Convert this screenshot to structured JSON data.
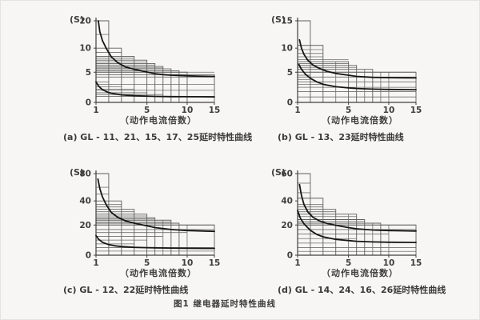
{
  "figure_caption": "图1 继电器延时特性曲线",
  "chart_data": [
    {
      "id": "a",
      "type": "line",
      "ylabel": "(S)",
      "xlabel": "（动作电流倍数）",
      "caption": "(a) GL - 11、21、15、17、25延时特性曲线",
      "yticks": [
        0,
        5,
        10,
        20
      ],
      "xticks": [
        1,
        5,
        10,
        15
      ],
      "xlim": [
        1,
        15
      ],
      "grid": "stepped-setting-bands",
      "steps": [
        {
          "xr": 2,
          "h": 20
        },
        {
          "xr": 3,
          "h": 10
        },
        {
          "xr": 4,
          "h": 8.3
        },
        {
          "xr": 5,
          "h": 7.5
        },
        {
          "xr": 6,
          "h": 6.8
        },
        {
          "xr": 7,
          "h": 6.2
        },
        {
          "xr": 8,
          "h": 5.7
        },
        {
          "xr": 9,
          "h": 5.3
        },
        {
          "xr": 10,
          "h": 5
        },
        {
          "xr": 15,
          "h": 4.6
        }
      ],
      "lines": [
        {
          "h": 15,
          "xr": 2
        },
        {
          "h": 9.1,
          "xr": 3
        },
        {
          "h": 7.9,
          "xr": 4
        },
        {
          "h": 7.1,
          "xr": 5
        },
        {
          "h": 6.5,
          "xr": 6
        },
        {
          "h": 5.9,
          "xr": 7
        },
        {
          "h": 5,
          "xr": 15
        },
        {
          "h": 4.2,
          "xr": 15
        },
        {
          "h": 3,
          "xr": 15
        },
        {
          "h": 2,
          "xr": 15
        },
        {
          "h": 1,
          "xr": 15
        },
        {
          "h": 3.4,
          "xr": 2
        },
        {
          "h": 2.6,
          "xr": 3
        },
        {
          "h": 2.2,
          "xr": 4
        },
        {
          "h": 1.6,
          "xr": 5
        },
        {
          "h": 1.3,
          "xr": 7
        }
      ],
      "vlines": [],
      "curves": [
        {
          "name": "upper-limit-curve",
          "points": [
            [
              1.18,
              20
            ],
            [
              1.3,
              16
            ],
            [
              1.5,
              12.8
            ],
            [
              1.8,
              10
            ],
            [
              2.2,
              8.2
            ],
            [
              2.7,
              7
            ],
            [
              3.3,
              6.1
            ],
            [
              4,
              5.6
            ],
            [
              5,
              5.05
            ],
            [
              6,
              4.75
            ],
            [
              7,
              4.6
            ],
            [
              8,
              4.5
            ],
            [
              10,
              4.4
            ],
            [
              12,
              4.35
            ],
            [
              15,
              4.3
            ]
          ]
        },
        {
          "name": "lower-limit-curve",
          "points": [
            [
              1,
              3.4
            ],
            [
              1.2,
              2.7
            ],
            [
              1.5,
              2.1
            ],
            [
              2,
              1.62
            ],
            [
              2.5,
              1.4
            ],
            [
              3,
              1.25
            ],
            [
              4,
              1.1
            ],
            [
              5,
              1.03
            ],
            [
              6,
              1.0
            ],
            [
              8,
              0.96
            ],
            [
              10,
              0.94
            ],
            [
              15,
              0.92
            ]
          ]
        }
      ]
    },
    {
      "id": "b",
      "type": "line",
      "ylabel": "(S)",
      "xlabel": "（动作电流倍数）",
      "caption": "(b) GL - 13、23延时特性曲线",
      "yticks": [
        0,
        5,
        10,
        15
      ],
      "xticks": [
        1,
        5,
        10,
        15
      ],
      "xlim": [
        1,
        15
      ],
      "grid": "stepped-setting-bands",
      "steps": [
        {
          "xr": 2,
          "h": 15
        },
        {
          "xr": 3,
          "h": 10.5
        },
        {
          "xr": 5,
          "h": 7.2
        },
        {
          "xr": 6,
          "h": 6.4
        },
        {
          "xr": 8,
          "h": 5.6
        },
        {
          "xr": 15,
          "h": 5
        }
      ],
      "lines": [
        {
          "h": 9.7,
          "xr": 3
        },
        {
          "h": 8.9,
          "xr": 3
        },
        {
          "h": 8.2,
          "xr": 3
        },
        {
          "h": 7.6,
          "xr": 5
        },
        {
          "h": 6.8,
          "xr": 5
        },
        {
          "h": 6,
          "xr": 6
        },
        {
          "h": 5,
          "xr": 15
        },
        {
          "h": 4.2,
          "xr": 15
        },
        {
          "h": 3.4,
          "xr": 15
        },
        {
          "h": 2.5,
          "xr": 15
        },
        {
          "h": 1.8,
          "xr": 15
        },
        {
          "h": 0.9,
          "xr": 15
        },
        {
          "h": 4.5,
          "xr": 2
        },
        {
          "h": 3.8,
          "xr": 2
        },
        {
          "h": 3,
          "xr": 3
        }
      ],
      "vlines": [
        {
          "x": 4,
          "h": 7.2
        },
        {
          "x": 7,
          "h": 5.6
        },
        {
          "x": 9,
          "h": 5
        },
        {
          "x": 10,
          "h": 5
        }
      ],
      "curves": [
        {
          "name": "upper-limit-curve",
          "points": [
            [
              1.15,
              11.5
            ],
            [
              1.3,
              10
            ],
            [
              1.5,
              8.7
            ],
            [
              1.8,
              7.5
            ],
            [
              2.2,
              6.5
            ],
            [
              2.7,
              5.8
            ],
            [
              3.3,
              5.2
            ],
            [
              4,
              4.8
            ],
            [
              5,
              4.5
            ],
            [
              6,
              4.3
            ],
            [
              8,
              4.15
            ],
            [
              10,
              4.1
            ],
            [
              15,
              4.05
            ]
          ]
        },
        {
          "name": "lower-limit-curve",
          "points": [
            [
              1.1,
              6.6
            ],
            [
              1.3,
              5.6
            ],
            [
              1.6,
              4.7
            ],
            [
              2,
              4
            ],
            [
              2.5,
              3.4
            ],
            [
              3,
              3
            ],
            [
              4,
              2.6
            ],
            [
              5,
              2.4
            ],
            [
              6,
              2.3
            ],
            [
              8,
              2.2
            ],
            [
              10,
              2.15
            ],
            [
              15,
              2.1
            ]
          ]
        }
      ]
    },
    {
      "id": "c",
      "type": "line",
      "ylabel": "(S)",
      "xlabel": "（动作电流倍数）",
      "caption": "(c) GL - 12、22延时特性曲线",
      "yticks": [
        0,
        20,
        40,
        80
      ],
      "xticks": [
        1,
        5,
        10,
        15
      ],
      "xlim": [
        1,
        15
      ],
      "grid": "stepped-setting-bands",
      "steps": [
        {
          "xr": 2,
          "h": 80
        },
        {
          "xr": 3,
          "h": 40
        },
        {
          "xr": 4,
          "h": 33
        },
        {
          "xr": 5,
          "h": 29
        },
        {
          "xr": 6,
          "h": 26
        },
        {
          "xr": 8,
          "h": 24
        },
        {
          "xr": 9,
          "h": 21.5
        },
        {
          "xr": 15,
          "h": 20
        }
      ],
      "lines": [
        {
          "h": 60,
          "xr": 2
        },
        {
          "h": 50,
          "xr": 2
        },
        {
          "h": 37,
          "xr": 3
        },
        {
          "h": 35,
          "xr": 3
        },
        {
          "h": 31,
          "xr": 4
        },
        {
          "h": 27.5,
          "xr": 5
        },
        {
          "h": 25,
          "xr": 6
        },
        {
          "h": 22.5,
          "xr": 8
        },
        {
          "h": 20,
          "xr": 15
        },
        {
          "h": 17,
          "xr": 15
        },
        {
          "h": 15,
          "xr": 10
        },
        {
          "h": 12.5,
          "xr": 7
        },
        {
          "h": 10,
          "xr": 5
        },
        {
          "h": 7.5,
          "xr": 4
        },
        {
          "h": 5,
          "xr": 15
        },
        {
          "h": 2.7,
          "xr": 15
        }
      ],
      "vlines": [
        {
          "x": 7,
          "h": 24
        },
        {
          "x": 10,
          "h": 20
        }
      ],
      "curves": [
        {
          "name": "upper-limit-curve",
          "points": [
            [
              1.15,
              72
            ],
            [
              1.3,
              58
            ],
            [
              1.5,
              46
            ],
            [
              1.8,
              37
            ],
            [
              2.2,
              30.5
            ],
            [
              2.7,
              26.5
            ],
            [
              3.3,
              23.5
            ],
            [
              4,
              21.5
            ],
            [
              5,
              19.5
            ],
            [
              6,
              18.3
            ],
            [
              8,
              17
            ],
            [
              10,
              16.3
            ],
            [
              15,
              15.8
            ]
          ]
        },
        {
          "name": "lower-limit-curve",
          "points": [
            [
              1,
              13
            ],
            [
              1.2,
              10.6
            ],
            [
              1.5,
              8.6
            ],
            [
              2,
              7
            ],
            [
              2.5,
              6.2
            ],
            [
              3,
              5.7
            ],
            [
              4,
              5.2
            ],
            [
              5,
              5
            ],
            [
              6,
              4.85
            ],
            [
              8,
              4.7
            ],
            [
              10,
              4.6
            ],
            [
              15,
              4.5
            ]
          ]
        }
      ]
    },
    {
      "id": "d",
      "type": "line",
      "ylabel": "(S)",
      "xlabel": "（动作电流倍数）",
      "caption": "(d) GL - 14、24、16、26延时特性曲线",
      "yticks": [
        0,
        20,
        40,
        60
      ],
      "xticks": [
        1,
        5,
        10,
        15
      ],
      "xlim": [
        1,
        15
      ],
      "grid": "stepped-setting-bands",
      "steps": [
        {
          "xr": 2,
          "h": 60
        },
        {
          "xr": 3,
          "h": 42
        },
        {
          "xr": 4,
          "h": 33
        },
        {
          "xr": 6,
          "h": 29
        },
        {
          "xr": 7,
          "h": 24.5
        },
        {
          "xr": 9,
          "h": 21.5
        },
        {
          "xr": 15,
          "h": 20
        }
      ],
      "lines": [
        {
          "h": 53,
          "xr": 2
        },
        {
          "h": 46,
          "xr": 2
        },
        {
          "h": 37,
          "xr": 3
        },
        {
          "h": 35,
          "xr": 3
        },
        {
          "h": 31,
          "xr": 4
        },
        {
          "h": 27,
          "xr": 6
        },
        {
          "h": 23,
          "xr": 7
        },
        {
          "h": 20,
          "xr": 15
        },
        {
          "h": 17,
          "xr": 15
        },
        {
          "h": 14,
          "xr": 10
        },
        {
          "h": 11,
          "xr": 6
        },
        {
          "h": 8,
          "xr": 4
        },
        {
          "h": 5,
          "xr": 15
        },
        {
          "h": 2.5,
          "xr": 15
        }
      ],
      "vlines": [
        {
          "x": 5,
          "h": 29
        },
        {
          "x": 8,
          "h": 21.5
        },
        {
          "x": 10,
          "h": 20
        }
      ],
      "curves": [
        {
          "name": "upper-limit-curve",
          "points": [
            [
              1.15,
              52
            ],
            [
              1.3,
              44
            ],
            [
              1.5,
              37
            ],
            [
              1.8,
              31
            ],
            [
              2.2,
              26.5
            ],
            [
              2.7,
              23.5
            ],
            [
              3.3,
              21.3
            ],
            [
              4,
              19.8
            ],
            [
              5,
              18.3
            ],
            [
              6,
              17.5
            ],
            [
              8,
              16.7
            ],
            [
              10,
              16.3
            ],
            [
              15,
              16
            ]
          ]
        },
        {
          "name": "lower-limit-curve",
          "points": [
            [
              1,
              32
            ],
            [
              1.2,
              26
            ],
            [
              1.5,
              21
            ],
            [
              2,
              16.5
            ],
            [
              2.5,
              13.8
            ],
            [
              3,
              12.2
            ],
            [
              4,
              10.5
            ],
            [
              5,
              9.7
            ],
            [
              6,
              9.2
            ],
            [
              8,
              8.8
            ],
            [
              10,
              8.6
            ],
            [
              15,
              8.4
            ]
          ]
        }
      ]
    }
  ]
}
